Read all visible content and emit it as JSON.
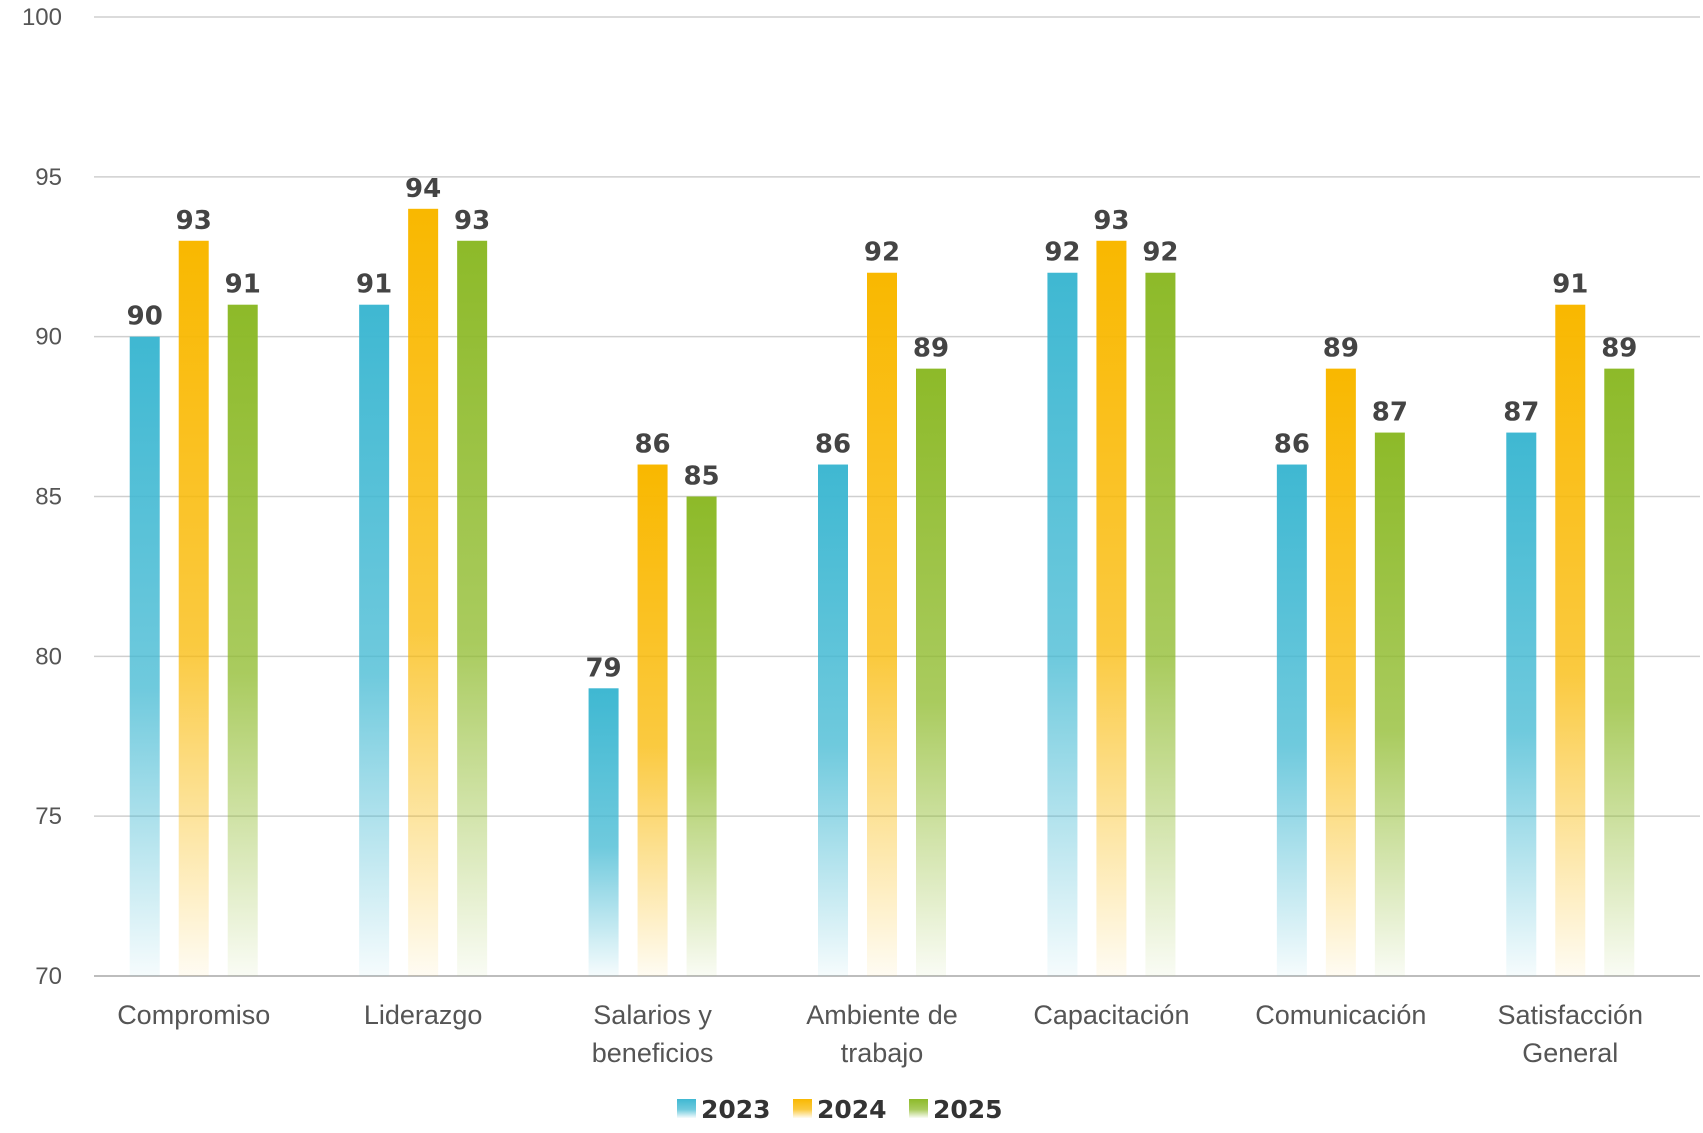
{
  "chart_data": {
    "type": "bar",
    "title": "",
    "xlabel": "",
    "ylabel": "",
    "ylim": [
      70,
      100
    ],
    "yticks": [
      70,
      75,
      80,
      85,
      90,
      95,
      100
    ],
    "grid": true,
    "legend_position": "bottom-center",
    "categories": [
      [
        "Compromiso"
      ],
      [
        "Liderazgo"
      ],
      [
        "Salarios y",
        "beneficios"
      ],
      [
        "Ambiente de",
        "trabajo"
      ],
      [
        "Capacitación"
      ],
      [
        "Comunicación"
      ],
      [
        "Satisfacción",
        "General"
      ]
    ],
    "series": [
      {
        "name": "2023",
        "color": "#3fb8d2",
        "values": [
          90,
          91,
          79,
          86,
          92,
          86,
          87
        ]
      },
      {
        "name": "2024",
        "color": "#f9b800",
        "values": [
          93,
          94,
          86,
          92,
          93,
          89,
          91
        ]
      },
      {
        "name": "2025",
        "color": "#8dba29",
        "values": [
          91,
          93,
          85,
          89,
          92,
          87,
          89
        ]
      }
    ]
  }
}
